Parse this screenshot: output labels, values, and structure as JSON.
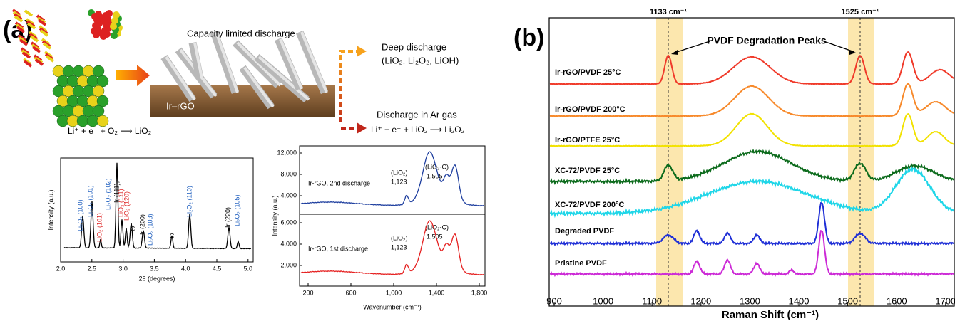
{
  "panel_a": {
    "label": "(a)",
    "schematic": {
      "title": "Capacity limited discharge",
      "substrate": "Ir–rGO",
      "deep_discharge": "Deep discharge",
      "deep_products": "(LiO₂, Li₂O₂, LiOH)",
      "ar_discharge": "Discharge in Ar gas",
      "ar_equation": "Li⁺ + e⁻ + LiO₂ ⟶ Li₂O₂",
      "equation": "Li⁺ + e⁻ + O₂ ⟶ LiO₂"
    },
    "xrd": {
      "x_label": "2θ (degrees)",
      "y_label": "Intensity (a.u.)",
      "xticks": [
        "2.0",
        "2.5",
        "3.0",
        "3.5",
        "4.0",
        "4.5",
        "5.0"
      ],
      "peak_labels": [
        {
          "text": "Li₂O₂ (100)",
          "color": "#1f5fbf"
        },
        {
          "text": "Li₂O₂ (101)",
          "color": "#1f5fbf"
        },
        {
          "text": "LiO₂ (101)",
          "color": "#d22"
        },
        {
          "text": "Li₂O₂ (102)",
          "color": "#1f5fbf"
        },
        {
          "text": "Ir (111),",
          "color": "#000"
        },
        {
          "text": "LiO₂ (111)",
          "color": "#d22"
        },
        {
          "text": "LiO₂ (120)",
          "color": "#d22"
        },
        {
          "text": "C",
          "color": "#000"
        },
        {
          "text": "Ir (200)",
          "color": "#000"
        },
        {
          "text": "Li₂O₂ (103)",
          "color": "#1f5fbf"
        },
        {
          "text": "C",
          "color": "#000"
        },
        {
          "text": "Li₂O₂ (110)",
          "color": "#1f5fbf"
        },
        {
          "text": "Ir (220)",
          "color": "#000"
        },
        {
          "text": "Li₂O₂ (105)",
          "color": "#1f5fbf"
        }
      ]
    },
    "raman": {
      "x_label": "Wavenumber (cm⁻¹)",
      "y_label": "Intensity (a.u.)",
      "xticks": [
        "200",
        "600",
        "1,000",
        "1,400",
        "1,800"
      ],
      "top": {
        "name": "Ir-rGO, 2nd discharge",
        "color": "#1f3f9f",
        "yticks": [
          "4,000",
          "8,000",
          "12,000"
        ],
        "peak_a": "(LiO₂)",
        "peak_a_value": "1,123",
        "peak_b": "(LiO₂-C)",
        "peak_b_value": "1,505"
      },
      "bottom": {
        "name": "Ir-rGO, 1st discharge",
        "color": "#e52020",
        "yticks": [
          "2,000",
          "4,000",
          "6,000"
        ],
        "peak_a": "(LiO₂)",
        "peak_a_value": "1,123",
        "peak_b": "(LiO₂-C)",
        "peak_b_value": "1,505"
      }
    }
  },
  "panel_b": {
    "label": "(b)",
    "band_1": "1133 cm⁻¹",
    "band_2": "1525 cm⁻¹",
    "annotation": "PVDF Degradation Peaks",
    "x_label": "Raman Shift (cm⁻¹)",
    "xticks": [
      "900",
      "1000",
      "1100",
      "1200",
      "1300",
      "1400",
      "1500",
      "1600",
      "1700"
    ],
    "series": [
      {
        "name": "Ir-rGO/PVDF 25°C",
        "color": "#f03a2a"
      },
      {
        "name": "Ir-rGO/PVDF 200°C",
        "color": "#f7892a"
      },
      {
        "name": "Ir-rGO/PTFE 25°C",
        "color": "#f2e200"
      },
      {
        "name": "XC-72/PVDF 25°C",
        "color": "#0c6b1c"
      },
      {
        "name": "XC-72/PVDF 200°C",
        "color": "#1fd6e8"
      },
      {
        "name": "Degraded PVDF",
        "color": "#1f2fd6"
      },
      {
        "name": "Pristine PVDF",
        "color": "#cc2ad6"
      }
    ]
  }
}
